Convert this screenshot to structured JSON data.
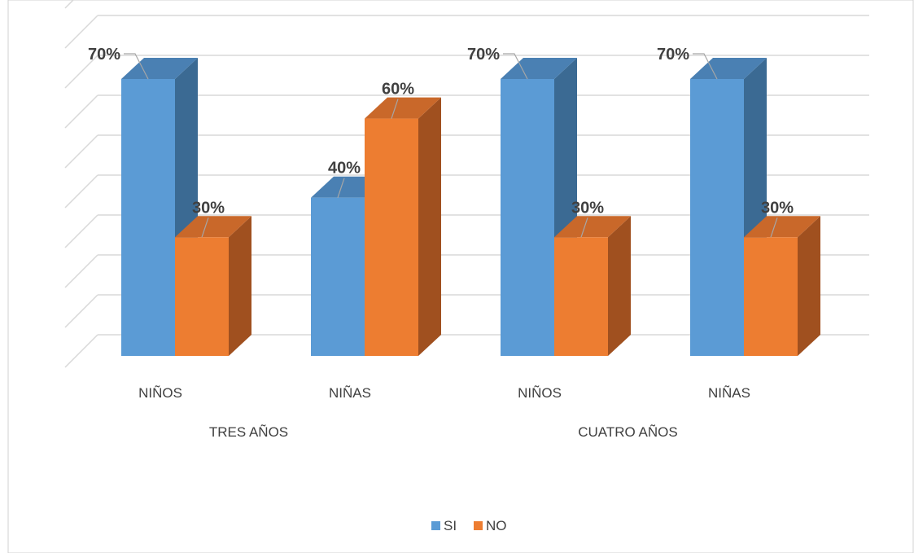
{
  "chart_data": {
    "type": "bar",
    "style": "3d-clustered-column",
    "categories": [
      "NIÑOS",
      "NIÑAS",
      "NIÑOS",
      "NIÑAS"
    ],
    "groups": [
      {
        "label": "TRES AÑOS",
        "categories": [
          0,
          1
        ]
      },
      {
        "label": "CUATRO AÑOS",
        "categories": [
          2,
          3
        ]
      }
    ],
    "series": [
      {
        "name": "SI",
        "values": [
          70,
          40,
          70,
          70
        ],
        "labels": [
          "70%",
          "40%",
          "70%",
          "70%"
        ]
      },
      {
        "name": "NO",
        "values": [
          30,
          60,
          30,
          30
        ],
        "labels": [
          "30%",
          "60%",
          "30%",
          "30%"
        ]
      }
    ],
    "ylim": [
      0,
      70
    ],
    "grid": true,
    "legend": "bottom",
    "colors": {
      "SI": {
        "front": "#5b9bd5",
        "side": "#3b6a93",
        "top": "#4a80b3"
      },
      "NO": {
        "front": "#ed7d31",
        "side": "#a0501f",
        "top": "#c9682a"
      },
      "gridline": "#d9d9d9",
      "text": "#404040",
      "border": "#d0d0d0"
    }
  }
}
